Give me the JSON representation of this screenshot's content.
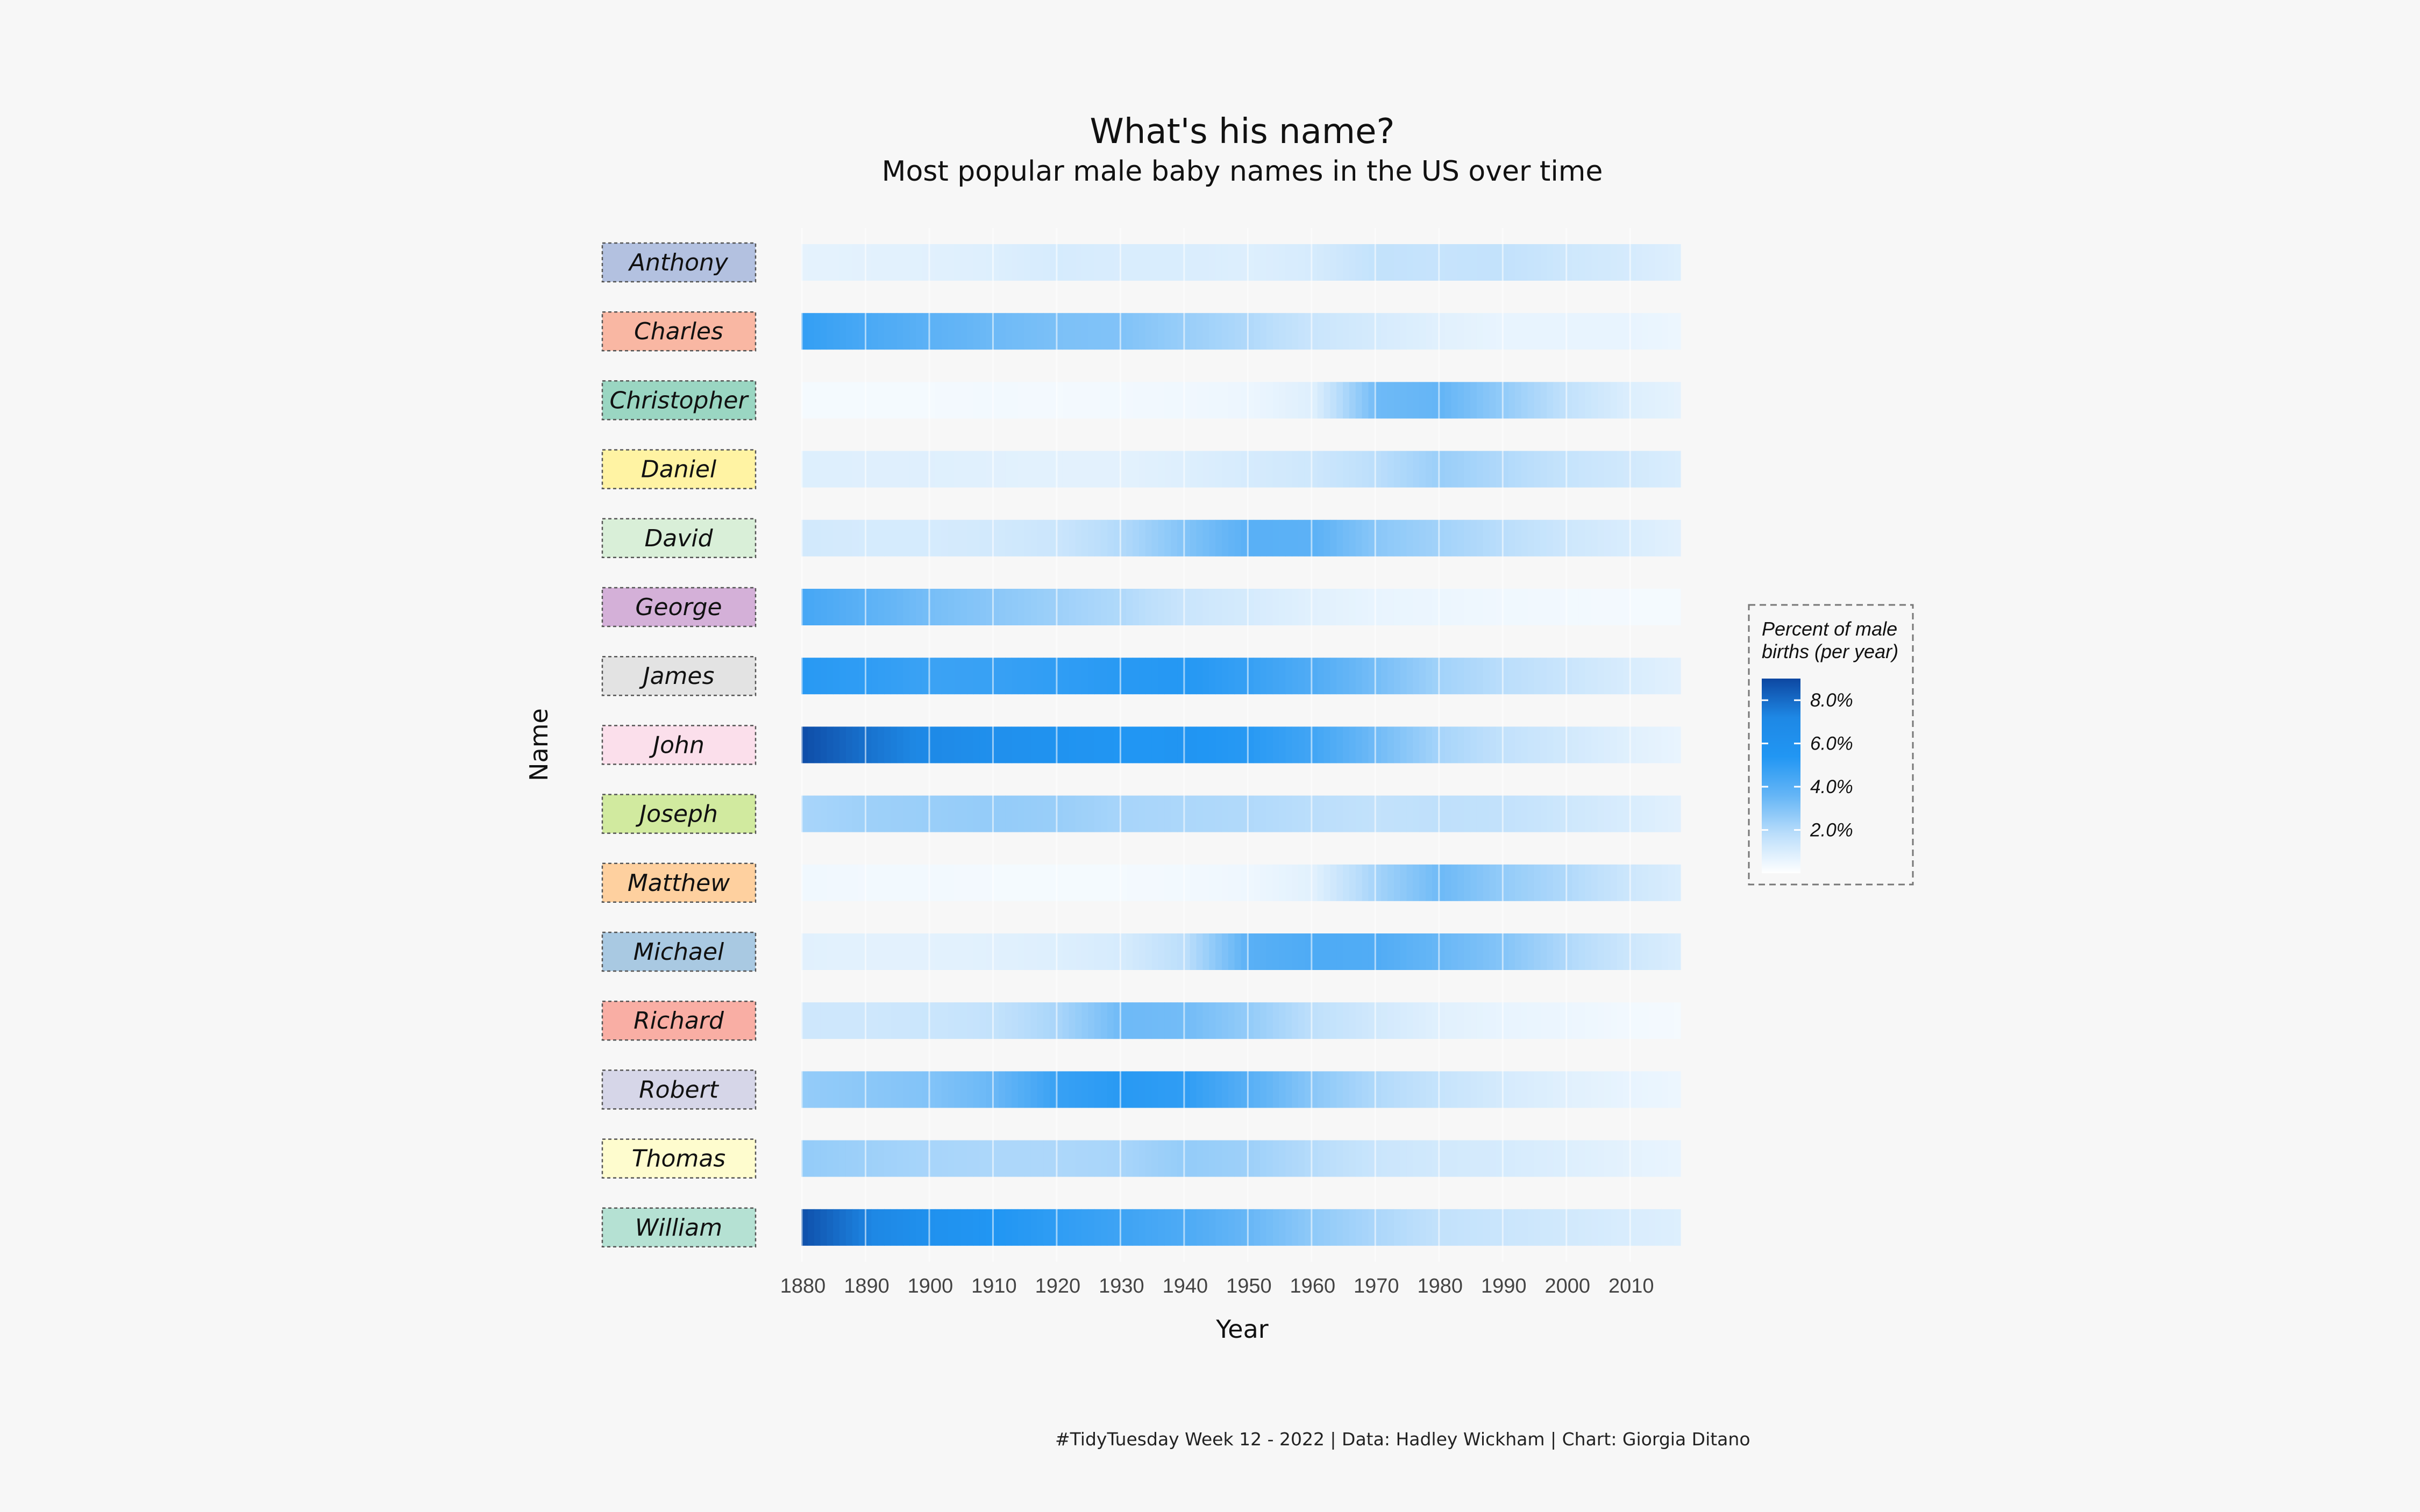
{
  "chart_data": {
    "type": "heatmap",
    "title": "What's his name?",
    "subtitle": "Most popular male baby names in the US over time",
    "xlabel": "Year",
    "ylabel": "Name",
    "xlim": [
      1880,
      2017
    ],
    "x_ticks": [
      1880,
      1890,
      1900,
      1910,
      1920,
      1930,
      1940,
      1950,
      1960,
      1970,
      1980,
      1990,
      2000,
      2010
    ],
    "x_tick_labels": [
      "1880",
      "1890",
      "1900",
      "1910",
      "1920",
      "1930",
      "1940",
      "1950",
      "1960",
      "1970",
      "1980",
      "1990",
      "2000",
      "2010"
    ],
    "grid": true,
    "legend": {
      "title_lines": [
        "Percent of male",
        "births (per year)"
      ],
      "position": "right",
      "range": [
        0,
        9.0
      ],
      "ticks": [
        2,
        4,
        6,
        8
      ],
      "tick_labels": [
        "2.0%",
        "4.0%",
        "6.0%",
        "8.0%"
      ],
      "colors": [
        "#ffffff",
        "#bbdefb",
        "#64b5f6",
        "#2196f3",
        "#1e88e5",
        "#0d47a1"
      ]
    },
    "value_unit": "percent of male births",
    "anchor_years": [
      1880,
      1890,
      1900,
      1910,
      1920,
      1930,
      1940,
      1950,
      1960,
      1970,
      1980,
      1990,
      2000,
      2010,
      2017
    ],
    "series": [
      {
        "name": "Anthony",
        "label_color": "#b3c1e0",
        "values": [
          0.7,
          0.75,
          0.8,
          0.9,
          1.1,
          1.0,
          1.0,
          0.9,
          1.1,
          1.6,
          1.5,
          1.6,
          1.3,
          1.1,
          0.9
        ]
      },
      {
        "name": "Charles",
        "label_color": "#f9b7a3",
        "values": [
          4.9,
          4.3,
          3.8,
          3.4,
          3.1,
          3.0,
          2.5,
          2.0,
          1.4,
          1.1,
          0.8,
          0.6,
          0.6,
          0.6,
          0.5
        ]
      },
      {
        "name": "Christopher",
        "label_color": "#9ad6c2",
        "values": [
          0.3,
          0.3,
          0.3,
          0.35,
          0.3,
          0.35,
          0.4,
          0.5,
          0.9,
          3.4,
          3.6,
          2.6,
          1.6,
          0.9,
          0.7
        ]
      },
      {
        "name": "Daniel",
        "label_color": "#fff3a3",
        "values": [
          0.9,
          0.85,
          0.85,
          0.8,
          0.75,
          0.75,
          0.9,
          1.1,
          1.3,
          1.8,
          2.5,
          2.0,
          1.5,
          1.2,
          1.0
        ]
      },
      {
        "name": "David",
        "label_color": "#d9efd8",
        "values": [
          1.2,
          1.1,
          1.1,
          1.2,
          1.4,
          2.0,
          3.0,
          3.9,
          3.8,
          2.8,
          2.3,
          1.8,
          1.3,
          1.0,
          0.8
        ]
      },
      {
        "name": "George",
        "label_color": "#d4b0d8",
        "values": [
          4.4,
          3.8,
          3.2,
          2.8,
          2.4,
          2.0,
          1.4,
          1.1,
          0.8,
          0.6,
          0.5,
          0.4,
          0.35,
          0.3,
          0.3
        ]
      },
      {
        "name": "James",
        "label_color": "#e3e3e3",
        "values": [
          5.2,
          5.0,
          4.7,
          4.8,
          5.0,
          5.2,
          5.3,
          4.8,
          4.1,
          3.2,
          2.3,
          1.8,
          1.4,
          1.0,
          0.8
        ]
      },
      {
        "name": "John",
        "label_color": "#fbdfeb",
        "values": [
          8.8,
          7.8,
          7.0,
          6.2,
          5.8,
          5.4,
          5.5,
          5.2,
          4.5,
          3.3,
          2.2,
          1.6,
          1.2,
          0.8,
          0.6
        ]
      },
      {
        "name": "Joseph",
        "label_color": "#d1ea9f",
        "values": [
          2.2,
          2.4,
          2.5,
          2.6,
          2.5,
          2.2,
          2.1,
          2.0,
          1.8,
          1.6,
          1.7,
          1.6,
          1.3,
          1.0,
          0.8
        ]
      },
      {
        "name": "Matthew",
        "label_color": "#fed09f",
        "values": [
          0.4,
          0.35,
          0.35,
          0.3,
          0.3,
          0.3,
          0.35,
          0.45,
          0.8,
          2.3,
          3.4,
          2.6,
          2.0,
          1.3,
          1.0
        ]
      },
      {
        "name": "Michael",
        "label_color": "#a9c9e2",
        "values": [
          0.8,
          0.75,
          0.75,
          0.8,
          0.9,
          1.1,
          1.8,
          3.9,
          4.2,
          4.1,
          3.5,
          2.9,
          2.0,
          1.3,
          1.0
        ]
      },
      {
        "name": "Richard",
        "label_color": "#f9aea4",
        "values": [
          1.3,
          1.3,
          1.4,
          1.6,
          2.2,
          3.4,
          3.3,
          2.6,
          1.7,
          1.2,
          0.8,
          0.6,
          0.5,
          0.35,
          0.3
        ]
      },
      {
        "name": "Robert",
        "label_color": "#d6d6e8",
        "values": [
          2.6,
          2.8,
          3.0,
          3.5,
          4.8,
          5.2,
          5.0,
          3.9,
          2.8,
          2.0,
          1.5,
          1.1,
          0.8,
          0.6,
          0.5
        ]
      },
      {
        "name": "Thomas",
        "label_color": "#fefcce",
        "values": [
          2.6,
          2.4,
          2.2,
          2.1,
          2.1,
          2.2,
          2.6,
          2.4,
          1.9,
          1.4,
          1.2,
          1.1,
          0.9,
          0.7,
          0.6
        ]
      },
      {
        "name": "William",
        "label_color": "#b5e1d3",
        "values": [
          8.7,
          7.3,
          6.0,
          5.4,
          5.0,
          4.6,
          4.2,
          3.5,
          2.7,
          2.1,
          1.6,
          1.4,
          1.2,
          1.0,
          0.9
        ]
      }
    ],
    "caption": "#TidyTuesday Week 12 - 2022 | Data: Hadley Wickham | Chart: Giorgia Ditano"
  }
}
